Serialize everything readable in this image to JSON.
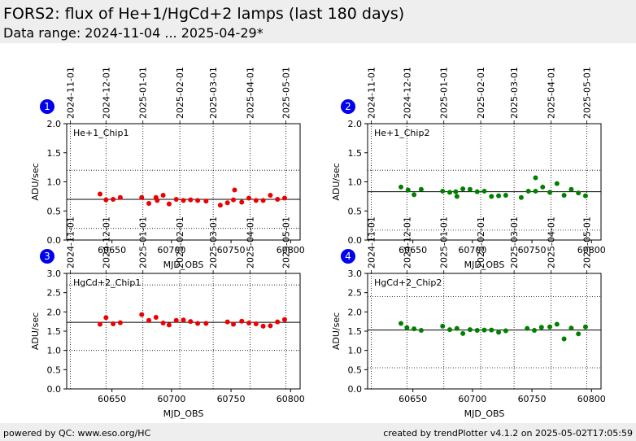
{
  "header": {
    "title": "FORS2: flux of He+1/HgCd+2 lamps (last 180 days)",
    "subtitle": "Data range: 2024-11-04 ... 2025-04-29*"
  },
  "footer": {
    "left": "powered by QC: www.eso.org/HC",
    "right": "created by trendPlotter v4.1.2 on 2025-05-02T17:05:59"
  },
  "colors": {
    "chip1": "#ee0000",
    "chip2": "#008000",
    "badge": "#0000ee"
  },
  "chart_data": [
    {
      "type": "scatter",
      "panel": "1",
      "label": "He+1_Chip1",
      "xlabel": "MJD_OBS",
      "ylabel": "ADU/sec",
      "xlim": [
        60612,
        60808
      ],
      "ylim": [
        0,
        2.0
      ],
      "yticks": [
        0,
        0.5,
        1.0,
        1.5,
        2.0
      ],
      "ytick_labels": [
        "0.0",
        "0.5",
        "1.0",
        "1.5",
        "2.0"
      ],
      "xticks": [
        60650,
        60700,
        60750,
        60800
      ],
      "date_ticks": [
        {
          "label": "2024-11-01",
          "mjd": 60615
        },
        {
          "label": "2024-12-01",
          "mjd": 60645
        },
        {
          "label": "2025-01-01",
          "mjd": 60676
        },
        {
          "label": "2025-02-01",
          "mjd": 60707
        },
        {
          "label": "2025-03-01",
          "mjd": 60735
        },
        {
          "label": "2025-04-01",
          "mjd": 60766
        },
        {
          "label": "2025-05-01",
          "mjd": 60796
        }
      ],
      "reference_line": 0.7,
      "dotted_limits": [
        0.2,
        1.2
      ],
      "color": "#ee0000",
      "points": [
        [
          60640,
          0.79
        ],
        [
          60645,
          0.69
        ],
        [
          60651,
          0.7
        ],
        [
          60657,
          0.73
        ],
        [
          60675,
          0.73
        ],
        [
          60681,
          0.63
        ],
        [
          60687,
          0.73
        ],
        [
          60688,
          0.68
        ],
        [
          60693,
          0.77
        ],
        [
          60698,
          0.62
        ],
        [
          60704,
          0.7
        ],
        [
          60710,
          0.68
        ],
        [
          60716,
          0.69
        ],
        [
          60722,
          0.68
        ],
        [
          60729,
          0.67
        ],
        [
          60741,
          0.6
        ],
        [
          60747,
          0.64
        ],
        [
          60752,
          0.69
        ],
        [
          60753,
          0.86
        ],
        [
          60759,
          0.65
        ],
        [
          60765,
          0.72
        ],
        [
          60771,
          0.68
        ],
        [
          60777,
          0.68
        ],
        [
          60783,
          0.77
        ],
        [
          60789,
          0.7
        ],
        [
          60795,
          0.72
        ]
      ]
    },
    {
      "type": "scatter",
      "panel": "2",
      "label": "He+1_Chip2",
      "xlabel": "MJD_OBS",
      "ylabel": "ADU/sec",
      "xlim": [
        60612,
        60808
      ],
      "ylim": [
        0,
        2.0
      ],
      "yticks": [
        0,
        0.5,
        1.0,
        1.5,
        2.0
      ],
      "ytick_labels": [
        "0.0",
        "0.5",
        "1.0",
        "1.5",
        "2.0"
      ],
      "xticks": [
        60650,
        60700,
        60750,
        60800
      ],
      "date_ticks": [
        {
          "label": "2024-11-01",
          "mjd": 60615
        },
        {
          "label": "2024-12-01",
          "mjd": 60645
        },
        {
          "label": "2025-01-01",
          "mjd": 60676
        },
        {
          "label": "2025-02-01",
          "mjd": 60707
        },
        {
          "label": "2025-03-01",
          "mjd": 60735
        },
        {
          "label": "2025-04-01",
          "mjd": 60766
        },
        {
          "label": "2025-05-01",
          "mjd": 60796
        }
      ],
      "reference_line": 0.83,
      "dotted_limits": [
        0.17,
        1.2
      ],
      "color": "#008000",
      "points": [
        [
          60640,
          0.91
        ],
        [
          60646,
          0.86
        ],
        [
          60651,
          0.78
        ],
        [
          60657,
          0.87
        ],
        [
          60675,
          0.84
        ],
        [
          60681,
          0.82
        ],
        [
          60686,
          0.83
        ],
        [
          60687,
          0.75
        ],
        [
          60692,
          0.88
        ],
        [
          60698,
          0.87
        ],
        [
          60704,
          0.83
        ],
        [
          60710,
          0.84
        ],
        [
          60716,
          0.75
        ],
        [
          60722,
          0.76
        ],
        [
          60728,
          0.77
        ],
        [
          60741,
          0.73
        ],
        [
          60747,
          0.84
        ],
        [
          60753,
          1.07
        ],
        [
          60753,
          0.84
        ],
        [
          60759,
          0.91
        ],
        [
          60765,
          0.82
        ],
        [
          60771,
          0.97
        ],
        [
          60777,
          0.77
        ],
        [
          60783,
          0.87
        ],
        [
          60789,
          0.81
        ],
        [
          60795,
          0.76
        ]
      ]
    },
    {
      "type": "scatter",
      "panel": "3",
      "label": "HgCd+2_Chip1",
      "xlabel": "MJD_OBS",
      "ylabel": "ADU/sec",
      "xlim": [
        60612,
        60808
      ],
      "ylim": [
        0,
        3.0
      ],
      "yticks": [
        0,
        0.5,
        1.0,
        1.5,
        2.0,
        2.5,
        3.0
      ],
      "ytick_labels": [
        "0.0",
        "0.5",
        "1.0",
        "1.5",
        "2.0",
        "2.5",
        "3.0"
      ],
      "xticks": [
        60650,
        60700,
        60750,
        60800
      ],
      "date_ticks": [
        {
          "label": "2024-11-01",
          "mjd": 60615
        },
        {
          "label": "2024-12-01",
          "mjd": 60645
        },
        {
          "label": "2025-01-01",
          "mjd": 60676
        },
        {
          "label": "2025-02-01",
          "mjd": 60707
        },
        {
          "label": "2025-03-01",
          "mjd": 60735
        },
        {
          "label": "2025-04-01",
          "mjd": 60766
        },
        {
          "label": "2025-05-01",
          "mjd": 60796
        }
      ],
      "reference_line": 1.73,
      "dotted_limits": [
        1.0,
        2.7
      ],
      "color": "#ee0000",
      "points": [
        [
          60640,
          1.68
        ],
        [
          60645,
          1.85
        ],
        [
          60651,
          1.69
        ],
        [
          60657,
          1.72
        ],
        [
          60675,
          1.93
        ],
        [
          60681,
          1.78
        ],
        [
          60687,
          1.86
        ],
        [
          60693,
          1.71
        ],
        [
          60698,
          1.66
        ],
        [
          60704,
          1.78
        ],
        [
          60710,
          1.79
        ],
        [
          60716,
          1.75
        ],
        [
          60722,
          1.7
        ],
        [
          60729,
          1.7
        ],
        [
          60747,
          1.74
        ],
        [
          60752,
          1.68
        ],
        [
          60759,
          1.76
        ],
        [
          60765,
          1.71
        ],
        [
          60771,
          1.69
        ],
        [
          60777,
          1.63
        ],
        [
          60783,
          1.64
        ],
        [
          60789,
          1.74
        ],
        [
          60795,
          1.8
        ]
      ]
    },
    {
      "type": "scatter",
      "panel": "4",
      "label": "HgCd+2_Chip2",
      "xlabel": "MJD_OBS",
      "ylabel": "ADU/sec",
      "xlim": [
        60612,
        60808
      ],
      "ylim": [
        0,
        3.0
      ],
      "yticks": [
        0,
        0.5,
        1.0,
        1.5,
        2.0,
        2.5,
        3.0
      ],
      "ytick_labels": [
        "0.0",
        "0.5",
        "1.0",
        "1.5",
        "2.0",
        "2.5",
        "3.0"
      ],
      "xticks": [
        60650,
        60700,
        60750,
        60800
      ],
      "date_ticks": [
        {
          "label": "2024-11-01",
          "mjd": 60615
        },
        {
          "label": "2024-12-01",
          "mjd": 60645
        },
        {
          "label": "2025-01-01",
          "mjd": 60676
        },
        {
          "label": "2025-02-01",
          "mjd": 60707
        },
        {
          "label": "2025-03-01",
          "mjd": 60735
        },
        {
          "label": "2025-04-01",
          "mjd": 60766
        },
        {
          "label": "2025-05-01",
          "mjd": 60796
        }
      ],
      "reference_line": 1.53,
      "dotted_limits": [
        0.55,
        2.4
      ],
      "color": "#008000",
      "points": [
        [
          60640,
          1.7
        ],
        [
          60645,
          1.59
        ],
        [
          60651,
          1.56
        ],
        [
          60657,
          1.52
        ],
        [
          60675,
          1.63
        ],
        [
          60681,
          1.54
        ],
        [
          60687,
          1.57
        ],
        [
          60692,
          1.44
        ],
        [
          60698,
          1.54
        ],
        [
          60704,
          1.52
        ],
        [
          60710,
          1.53
        ],
        [
          60716,
          1.53
        ],
        [
          60722,
          1.47
        ],
        [
          60728,
          1.51
        ],
        [
          60746,
          1.57
        ],
        [
          60752,
          1.52
        ],
        [
          60758,
          1.6
        ],
        [
          60765,
          1.61
        ],
        [
          60771,
          1.68
        ],
        [
          60777,
          1.3
        ],
        [
          60783,
          1.58
        ],
        [
          60789,
          1.43
        ],
        [
          60795,
          1.61
        ]
      ]
    }
  ]
}
